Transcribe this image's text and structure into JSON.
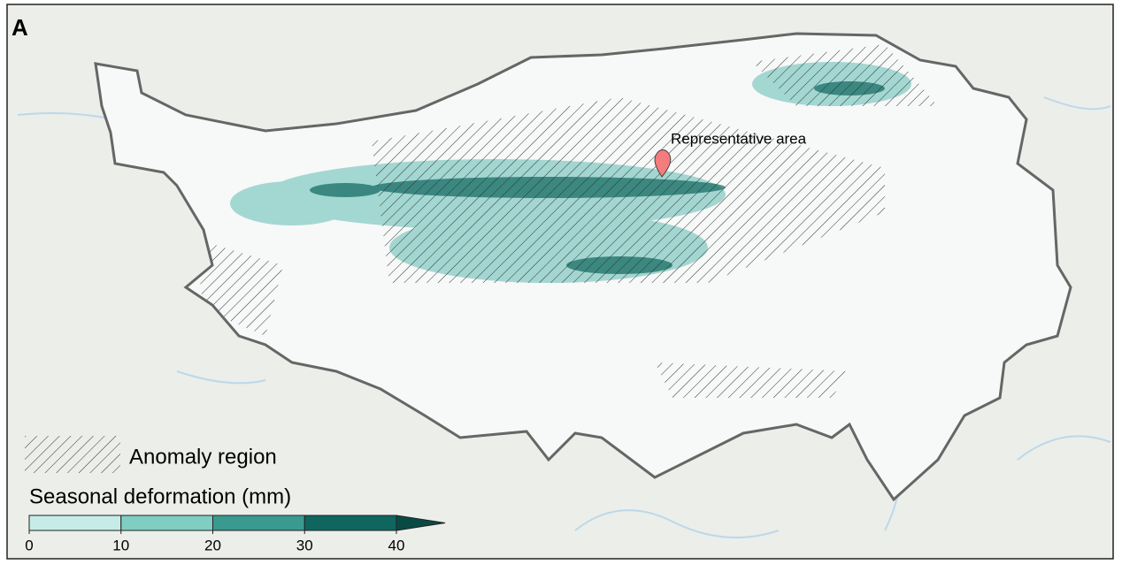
{
  "panel_label": "A",
  "marker_label": "Representative area",
  "legend": {
    "anomaly_label": "Anomaly region",
    "colorbar": {
      "title": "Seasonal deformation (mm)",
      "lim": [
        0,
        40
      ],
      "ticks": [
        0,
        10,
        20,
        30,
        40
      ],
      "colors": [
        "#c6ece8",
        "#7fcdc3",
        "#3a9a8f",
        "#0e665e"
      ],
      "extend_color": "#0a4a44"
    }
  }
}
